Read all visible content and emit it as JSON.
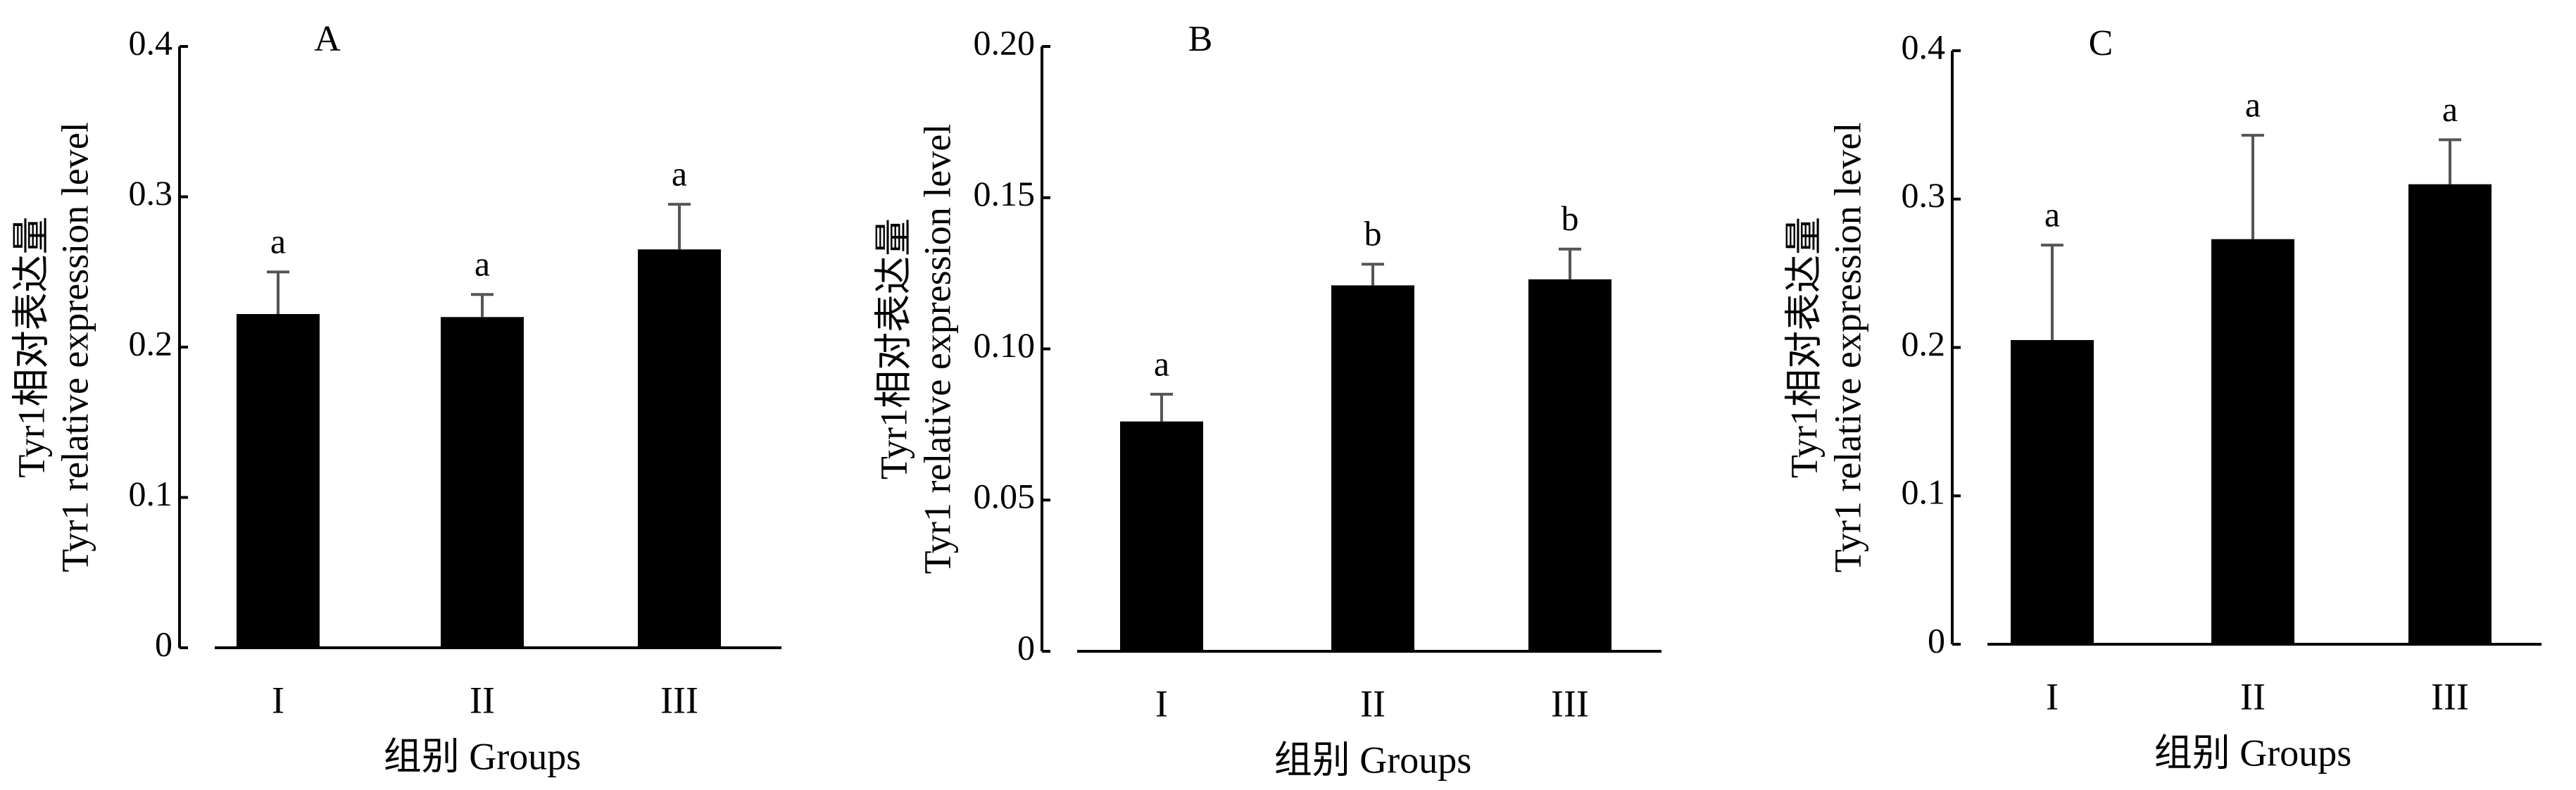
{
  "chart_data": [
    {
      "type": "bar",
      "title": "A",
      "ylabel": [
        "Tyr1相对表达量",
        "Tyr1 relative expression level"
      ],
      "xlabel": "组别 Groups",
      "categories": [
        "I",
        "II",
        "III"
      ],
      "values": [
        0.222,
        0.22,
        0.265
      ],
      "errors": [
        0.028,
        0.015,
        0.03
      ],
      "annotations": [
        "a",
        "a",
        "a"
      ],
      "color": "#000000",
      "ylim": [
        0,
        0.4
      ],
      "yticks": [
        0,
        0.1,
        0.2,
        0.3,
        0.4
      ]
    },
    {
      "type": "bar",
      "title": "B",
      "ylabel": [
        "Tyr1相对表达量",
        "Tyr1 relative expression level"
      ],
      "xlabel": "组别 Groups",
      "categories": [
        "I",
        "II",
        "III"
      ],
      "values": [
        0.076,
        0.121,
        0.123
      ],
      "errors": [
        0.009,
        0.007,
        0.01
      ],
      "annotations": [
        "a",
        "b",
        "b"
      ],
      "color": "#000000",
      "ylim": [
        0,
        0.2
      ],
      "yticks": [
        0,
        0.05,
        {
          "value": 0.1,
          "label": "0.10"
        },
        0.15,
        {
          "value": 0.2,
          "label": "0.20"
        }
      ]
    },
    {
      "type": "bar",
      "title": "C",
      "ylabel": [
        "Tyr1相对表达量",
        "Tyr1 relative expression level"
      ],
      "xlabel": "组别 Groups",
      "categories": [
        "I",
        "II",
        "III"
      ],
      "values": [
        0.205,
        0.273,
        0.31
      ],
      "errors": [
        0.064,
        0.07,
        0.03
      ],
      "annotations": [
        "a",
        "a",
        "a"
      ],
      "color": "#000000",
      "ylim": [
        0,
        0.4
      ],
      "yticks": [
        0,
        0.1,
        0.2,
        0.3,
        0.4
      ]
    }
  ]
}
